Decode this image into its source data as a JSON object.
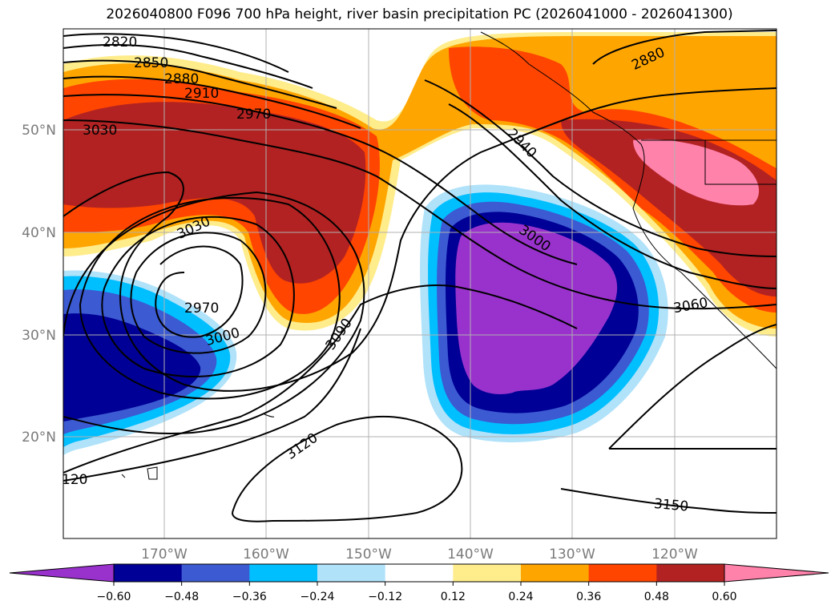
{
  "title": "2026040800 F096 700 hPa height, river basin precipitation PC (2026041000 - 2026041300)",
  "lon_labels": [
    "170°W",
    "160°W",
    "150°W",
    "140°W",
    "130°W",
    "120°W"
  ],
  "lat_labels": [
    "50°N",
    "40°N",
    "30°N",
    "20°N"
  ],
  "colorbar": {
    "ticks": [
      "−0.60",
      "−0.48",
      "−0.36",
      "−0.24",
      "−0.12",
      "0.12",
      "0.24",
      "0.36",
      "0.48",
      "0.60"
    ],
    "colors": [
      "#9932cc",
      "#000096",
      "#3c5ad2",
      "#00bfff",
      "#b0e2fa",
      "#ffffff",
      "#ffec8b",
      "#ffa500",
      "#ff4500",
      "#b22222",
      "#ff82ab"
    ]
  },
  "contour_labels": [
    "2820",
    "2850",
    "2880",
    "2910",
    "2970",
    "3030",
    "2940",
    "2880",
    "3000",
    "3030",
    "2970",
    "3000",
    "3060",
    "3090",
    "3120",
    "3150",
    "120"
  ],
  "colors": {
    "land_outline": "#000000",
    "grid": "#b0b0b0"
  }
}
